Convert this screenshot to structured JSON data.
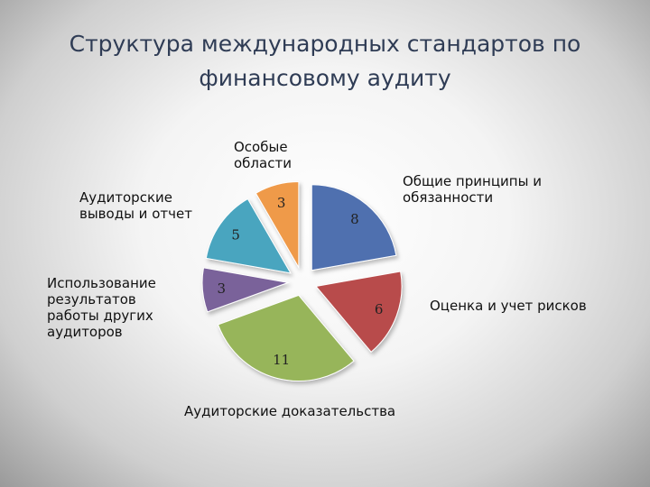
{
  "slide": {
    "title_line1": "Структура международных стандартов по",
    "title_line2": "финансовому аудиту"
  },
  "chart_data": {
    "type": "pie",
    "title": "Структура международных стандартов по финансовому аудиту",
    "exploded": true,
    "categories": [
      "Общие принципы и обязанности",
      "Оценка и учет рисков",
      "Аудиторские  доказательства",
      "Использование результатов работы других аудиторов",
      "Аудиторские выводы и отчет",
      "Особые области"
    ],
    "values": [
      8,
      6,
      11,
      3,
      5,
      3
    ],
    "data_labels": [
      "8",
      "6",
      "11",
      "3",
      "5",
      "3"
    ],
    "colors": [
      "#4f6faf",
      "#b84b4b",
      "#97b55a",
      "#7a629a",
      "#4aa5bf",
      "#ef9a4a"
    ],
    "legend": "category labels placed around the pie"
  }
}
